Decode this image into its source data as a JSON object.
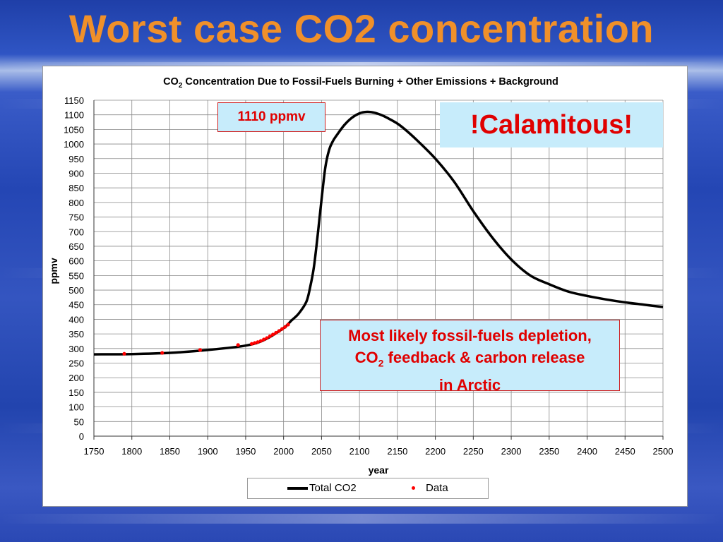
{
  "slide": {
    "title": "Worst case CO2 concentration"
  },
  "callouts": {
    "peak": "1110 ppmv",
    "calamitous": "!Calamitous!",
    "note_line1": "Most likely fossil-fuels depletion,",
    "note_line2_pre": "CO",
    "note_line2_sub": "2",
    "note_line2_post": " feedback & carbon release",
    "note_line3": "in Arctic"
  },
  "chart_data": {
    "type": "line",
    "title_pre": "CO",
    "title_sub": "2",
    "title_post": " Concentration Due to Fossil-Fuels Burning + Other Emissions + Background",
    "xlabel": "year",
    "ylabel": "ppmv",
    "xlim": [
      1750,
      2500
    ],
    "ylim": [
      0,
      1150
    ],
    "xticks": [
      1750,
      1800,
      1850,
      1900,
      1950,
      2000,
      2050,
      2100,
      2150,
      2200,
      2250,
      2300,
      2350,
      2400,
      2450,
      2500
    ],
    "yticks": [
      0,
      50,
      100,
      150,
      200,
      250,
      300,
      350,
      400,
      450,
      500,
      550,
      600,
      650,
      700,
      750,
      800,
      850,
      900,
      950,
      1000,
      1050,
      1100,
      1150
    ],
    "grid": true,
    "legend_position": "bottom",
    "series": [
      {
        "name": "Total CO2",
        "type": "line",
        "color": "#000000",
        "x": [
          1750,
          1800,
          1850,
          1900,
          1950,
          1975,
          2000,
          2010,
          2020,
          2030,
          2035,
          2040,
          2045,
          2050,
          2055,
          2060,
          2065,
          2070,
          2080,
          2090,
          2100,
          2110,
          2120,
          2130,
          2140,
          2150,
          2160,
          2175,
          2200,
          2225,
          2250,
          2275,
          2300,
          2325,
          2350,
          2375,
          2400,
          2425,
          2450,
          2475,
          2500
        ],
        "y": [
          280,
          281,
          285,
          295,
          310,
          330,
          370,
          395,
          420,
          460,
          510,
          580,
          690,
          810,
          920,
          980,
          1010,
          1030,
          1065,
          1090,
          1105,
          1110,
          1107,
          1098,
          1085,
          1070,
          1050,
          1015,
          950,
          870,
          770,
          680,
          605,
          550,
          520,
          495,
          480,
          468,
          458,
          450,
          442
        ]
      },
      {
        "name": "Data",
        "type": "scatter",
        "color": "#ff0000",
        "x": [
          1790,
          1840,
          1890,
          1940,
          1958,
          1962,
          1966,
          1970,
          1974,
          1978,
          1982,
          1986,
          1990,
          1994,
          1998,
          2002,
          2006
        ],
        "y": [
          282,
          285,
          295,
          312,
          316,
          319,
          322,
          326,
          331,
          336,
          342,
          348,
          354,
          360,
          367,
          374,
          382
        ]
      }
    ]
  }
}
